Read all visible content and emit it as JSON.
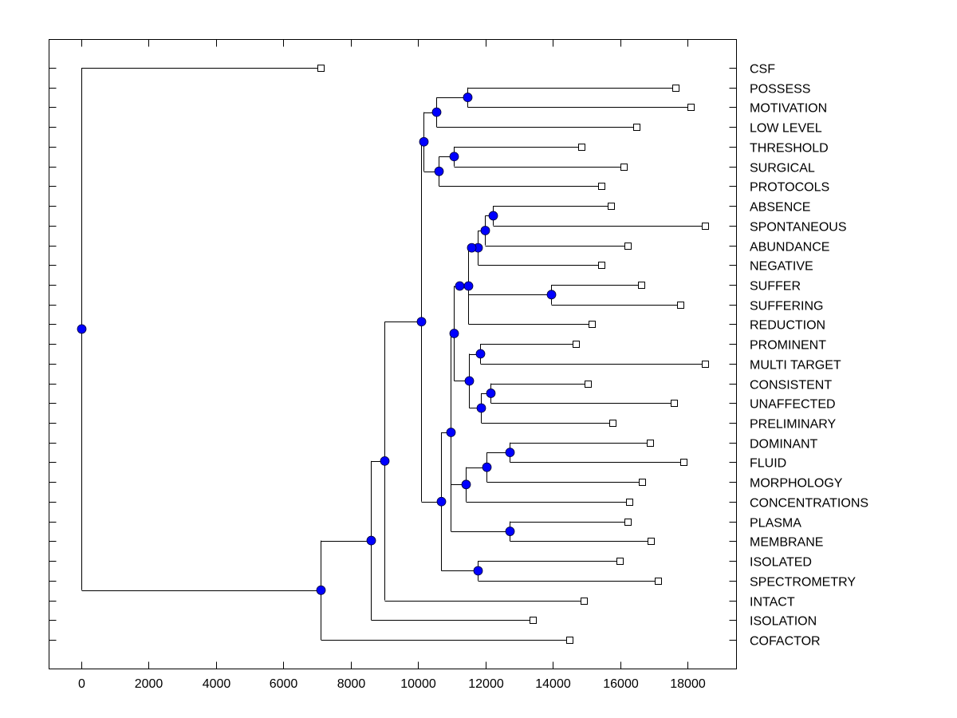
{
  "chart_data": {
    "type": "dendrogram",
    "title": "",
    "xlabel": "",
    "ylabel": "",
    "xlim": [
      -950,
      19450
    ],
    "xticks": [
      0,
      2000,
      4000,
      6000,
      8000,
      10000,
      12000,
      14000,
      16000,
      18000
    ],
    "xtick_labels": [
      "0",
      "2000",
      "4000",
      "6000",
      "8000",
      "10000",
      "12000",
      "14000",
      "16000",
      "18000"
    ],
    "grid": false,
    "leaf_label_position": "right",
    "colors": {
      "node_fill": "#0000ff",
      "line": "#000000",
      "leaf_fill": "#ffffff"
    },
    "leaves": [
      {
        "label": "CSF",
        "value": 7120
      },
      {
        "label": "POSSESS",
        "value": 17640
      },
      {
        "label": "MOTIVATION",
        "value": 18090
      },
      {
        "label": "LOW LEVEL",
        "value": 16490
      },
      {
        "label": "THRESHOLD",
        "value": 14850
      },
      {
        "label": "SURGICAL",
        "value": 16110
      },
      {
        "label": "PROTOCOLS",
        "value": 15440
      },
      {
        "label": "ABSENCE",
        "value": 15730
      },
      {
        "label": "SPONTANEOUS",
        "value": 18520
      },
      {
        "label": "ABUNDANCE",
        "value": 16230
      },
      {
        "label": "NEGATIVE",
        "value": 15440
      },
      {
        "label": "SUFFER",
        "value": 16630
      },
      {
        "label": "SUFFERING",
        "value": 17790
      },
      {
        "label": "REDUCTION",
        "value": 15160
      },
      {
        "label": "PROMINENT",
        "value": 14690
      },
      {
        "label": "MULTI TARGET",
        "value": 18520
      },
      {
        "label": "CONSISTENT",
        "value": 15040
      },
      {
        "label": "UNAFFECTED",
        "value": 17600
      },
      {
        "label": "PRELIMINARY",
        "value": 15780
      },
      {
        "label": "DOMINANT",
        "value": 16890
      },
      {
        "label": "FLUID",
        "value": 17880
      },
      {
        "label": "MORPHOLOGY",
        "value": 16650
      },
      {
        "label": "CONCENTRATIONS",
        "value": 16270
      },
      {
        "label": "PLASMA",
        "value": 16230
      },
      {
        "label": "MEMBRANE",
        "value": 16910
      },
      {
        "label": "ISOLATED",
        "value": 15990
      },
      {
        "label": "SPECTROMETRY",
        "value": 17120
      },
      {
        "label": "INTACT",
        "value": 14920
      },
      {
        "label": "ISOLATION",
        "value": 13410
      },
      {
        "label": "COFACTOR",
        "value": 14500
      }
    ],
    "nodes": [
      {
        "id": "root",
        "value": 0,
        "children": [
          "L:CSF",
          "A"
        ]
      },
      {
        "id": "A",
        "value": 7120,
        "children": [
          "B",
          "L:COFACTOR"
        ]
      },
      {
        "id": "B",
        "value": 8590,
        "children": [
          "C",
          "L:ISOLATION"
        ]
      },
      {
        "id": "C",
        "value": 8990,
        "children": [
          "D",
          "L:INTACT"
        ]
      },
      {
        "id": "D",
        "value": 10080,
        "children": [
          "E",
          "J"
        ]
      },
      {
        "id": "E",
        "value": 10170,
        "children": [
          "F",
          "G"
        ]
      },
      {
        "id": "F",
        "value": 10550,
        "children": [
          "H",
          "L:LOW LEVEL"
        ]
      },
      {
        "id": "H",
        "value": 11470,
        "children": [
          "L:POSSESS",
          "L:MOTIVATION"
        ]
      },
      {
        "id": "G",
        "value": 10600,
        "children": [
          "I",
          "L:PROTOCOLS"
        ]
      },
      {
        "id": "I",
        "value": 11070,
        "children": [
          "L:THRESHOLD",
          "L:SURGICAL"
        ]
      },
      {
        "id": "J",
        "value": 10690,
        "children": [
          "K",
          "Lnode"
        ]
      },
      {
        "id": "K",
        "value": 10970,
        "children": [
          "M",
          "N2",
          "BB"
        ]
      },
      {
        "id": "M",
        "value": 11070,
        "children": [
          "O",
          "P"
        ]
      },
      {
        "id": "O",
        "value": 11230,
        "children": [
          "Q"
        ]
      },
      {
        "id": "Q",
        "value": 11490,
        "children": [
          "R",
          "S",
          "L:REDUCTION"
        ]
      },
      {
        "id": "R",
        "value": 11590,
        "children": [
          "T"
        ]
      },
      {
        "id": "T",
        "value": 11760,
        "children": [
          "U",
          "L:NEGATIVE"
        ]
      },
      {
        "id": "U",
        "value": 11990,
        "children": [
          "V",
          "L:ABUNDANCE"
        ]
      },
      {
        "id": "V",
        "value": 12230,
        "children": [
          "L:ABSENCE",
          "L:SPONTANEOUS"
        ]
      },
      {
        "id": "S",
        "value": 13950,
        "children": [
          "L:SUFFER",
          "L:SUFFERING"
        ]
      },
      {
        "id": "P",
        "value": 11520,
        "children": [
          "W",
          "X"
        ]
      },
      {
        "id": "W",
        "value": 11830,
        "children": [
          "L:PROMINENT",
          "L:MULTI TARGET"
        ]
      },
      {
        "id": "X",
        "value": 11870,
        "children": [
          "Y",
          "L:PRELIMINARY"
        ]
      },
      {
        "id": "Y",
        "value": 12160,
        "children": [
          "L:CONSISTENT",
          "L:UNAFFECTED"
        ]
      },
      {
        "id": "N2",
        "value": 11420,
        "children": [
          "Z",
          "L:CONCENTRATIONS"
        ]
      },
      {
        "id": "Z",
        "value": 12020,
        "children": [
          "AA",
          "L:MORPHOLOGY"
        ]
      },
      {
        "id": "AA",
        "value": 12720,
        "children": [
          "L:DOMINANT",
          "L:FLUID"
        ]
      },
      {
        "id": "BB",
        "value": 12720,
        "children": [
          "L:PLASMA",
          "L:MEMBRANE"
        ]
      },
      {
        "id": "Lnode",
        "value": 11780,
        "children": [
          "L:ISOLATED",
          "L:SPECTROMETRY"
        ]
      }
    ]
  }
}
